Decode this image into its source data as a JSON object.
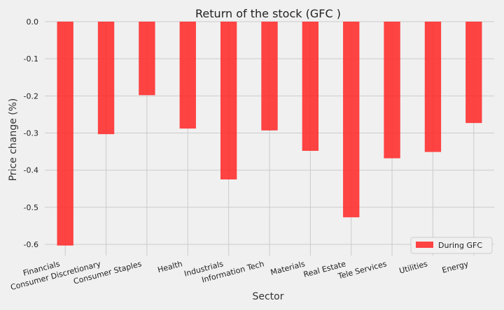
{
  "chart_data": {
    "type": "bar",
    "title": "Return of the stock (GFC )",
    "xlabel": "Sector",
    "ylabel": "Price change (%)",
    "categories": [
      "Financials",
      "Consumer Discretionary",
      "Consumer Staples",
      "Health",
      "Industrials",
      "Information Tech",
      "Materials",
      "Real Estate",
      "Tele Services",
      "Utilities",
      "Energy"
    ],
    "series": [
      {
        "name": "During GFC",
        "color": "#ff2a2a",
        "values": [
          -0.603,
          -0.303,
          -0.198,
          -0.288,
          -0.425,
          -0.293,
          -0.348,
          -0.527,
          -0.368,
          -0.351,
          -0.273
        ]
      }
    ],
    "ylim": [
      -0.63,
      0.0
    ],
    "yticks": [
      0.0,
      -0.1,
      -0.2,
      -0.3,
      -0.4,
      -0.5,
      -0.6
    ],
    "ytick_labels": [
      "0.0",
      "-0.1",
      "-0.2",
      "-0.3",
      "-0.4",
      "-0.5",
      "-0.6"
    ],
    "grid": true,
    "legend_position": "bottom-right"
  }
}
